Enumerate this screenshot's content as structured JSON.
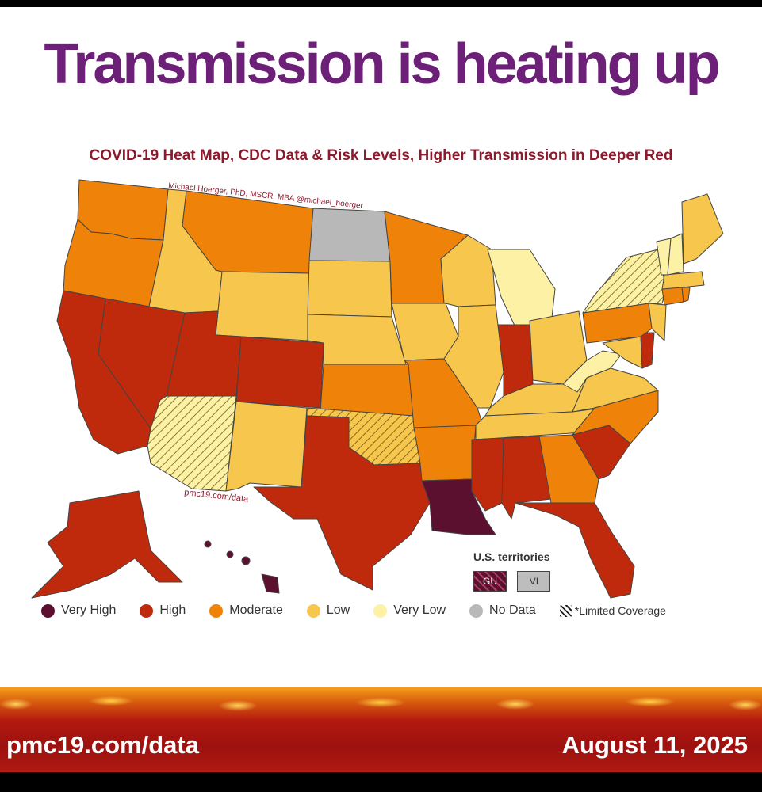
{
  "headline": "Transmission is heating up",
  "map": {
    "title": "COVID-19 Heat Map, CDC Data & Risk Levels, Higher Transmission in Deeper Red",
    "credit": "Michael Hoerger, PhD, MSCR, MBA @michael_hoerger",
    "source": "pmc19.com/data"
  },
  "territories": {
    "title": "U.S. territories",
    "items": [
      {
        "label": "GU",
        "level": "Very High",
        "limited": true
      },
      {
        "label": "VI",
        "level": "No Data",
        "limited": false
      }
    ]
  },
  "legend": [
    {
      "label": "Very High",
      "color": "#5c1030"
    },
    {
      "label": "High",
      "color": "#bf2a0c"
    },
    {
      "label": "Moderate",
      "color": "#ef8209"
    },
    {
      "label": "Low",
      "color": "#f7c64c"
    },
    {
      "label": "Very Low",
      "color": "#fcf1a5"
    },
    {
      "label": "No Data",
      "color": "#b8b8b8"
    },
    {
      "label": "*Limited Coverage",
      "color": "hatch"
    }
  ],
  "states": {
    "WA": "Moderate",
    "OR": "Moderate",
    "CA": "High",
    "NV": "High",
    "ID": "Low",
    "MT": "Moderate",
    "WY": "Low",
    "UT": "High",
    "AZ": "Very Low*",
    "CO": "High",
    "NM": "Low",
    "ND": "No Data",
    "SD": "Low",
    "NE": "Low",
    "KS": "Moderate",
    "OK": "Low*",
    "TX": "High",
    "MN": "Moderate",
    "IA": "Low",
    "MO": "Moderate",
    "AR": "Moderate",
    "LA": "Very High",
    "WI": "Low",
    "IL": "Low",
    "MI": "Very Low",
    "IN": "High",
    "OH": "Low",
    "KY": "Low",
    "TN": "Low",
    "MS": "High",
    "AL": "High",
    "GA": "Moderate",
    "FL": "High",
    "SC": "High",
    "NC": "Moderate",
    "VA": "Low",
    "WV": "Very Low",
    "PA": "Moderate",
    "NY": "Very Low*",
    "NJ": "Low",
    "DE": "High",
    "MD": "Low",
    "CT": "Moderate",
    "MA": "Low",
    "VT": "Very Low",
    "NH": "Very Low",
    "ME": "Low",
    "AK": "High",
    "HI": "Very High"
  },
  "footer": {
    "left": "pmc19.com/data",
    "right": "August 11, 2025"
  }
}
